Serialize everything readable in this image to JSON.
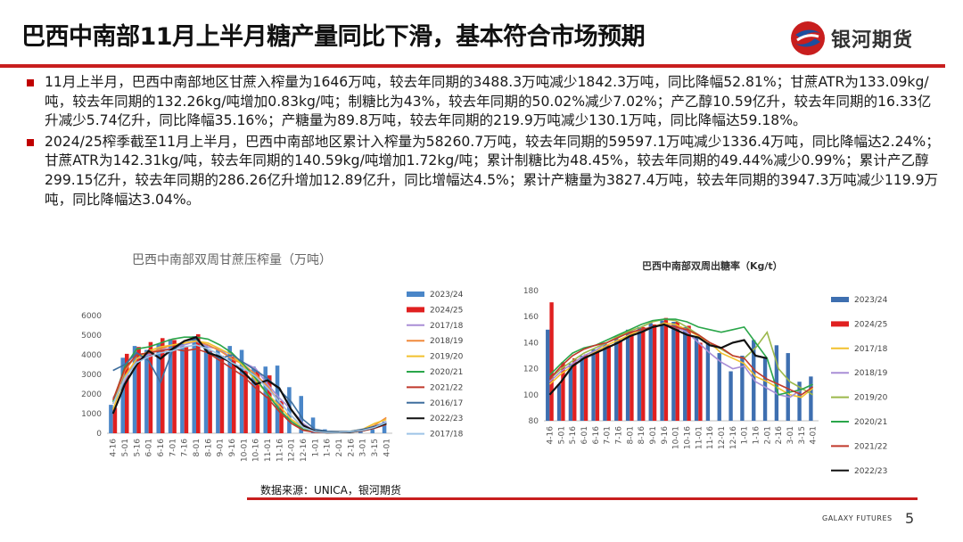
{
  "slide": {
    "title": "巴西中南部11月上半月糖产量同比下滑，基本符合市场预期",
    "logo_text": "银河期货",
    "footer_brand": "GALAXY FUTURES",
    "page_number": "5",
    "source": "数据来源：UNICA，银河期货",
    "bullets": [
      "11月上半月，巴西中南部地区甘蔗入榨量为1646万吨，较去年同期的3488.3万吨减少1842.3万吨，同比降幅52.81%；甘蔗ATR为133.09kg/吨，较去年同期的132.26kg/吨增加0.83kg/吨；制糖比为43%，较去年同期的50.02%减少7.02%；产乙醇10.59亿升，较去年同期的16.33亿升减少5.74亿升，同比降幅35.16%；产糖量为89.8万吨，较去年同期的219.9万吨减少130.1万吨，同比降幅达59.18%。",
      "2024/25榨季截至11月上半月，巴西中南部地区累计入榨量为58260.7万吨，较去年同期的59597.1万吨减少1336.4万吨，同比降幅达2.24%；甘蔗ATR为142.31kg/吨，较去年同期的140.59kg/吨增加1.72kg/吨；累计制糖比为48.45%，较去年同期的49.44%减少0.99%；累计产乙醇299.15亿升，较去年同期的286.26亿升增加12.89亿升，同比增幅达4.5%；累计产糖量为3827.4万吨，较去年同期的3947.3万吨减少119.9万吨，同比降幅达3.04%。"
    ],
    "colors": {
      "accent": "#c81e1e",
      "bullet": "#c00000"
    }
  },
  "chart_data": [
    {
      "type": "bar",
      "title": "巴西中南部双周甘蔗压榨量（万吨）",
      "xlabel": "",
      "ylabel": "",
      "ylim": [
        0,
        6000
      ],
      "yticks": [
        0,
        1000,
        2000,
        3000,
        4000,
        5000,
        6000
      ],
      "categories": [
        "4-16",
        "5-01",
        "5-16",
        "6-01",
        "6-16",
        "7-01",
        "7-16",
        "8-01",
        "8-16",
        "9-01",
        "9-16",
        "10-01",
        "10-16",
        "11-01",
        "11-16",
        "12-01",
        "12-16",
        "1-01",
        "1-16",
        "2-01",
        "2-16",
        "3-01",
        "3-15",
        "4-01"
      ],
      "legend_position": "right",
      "series": [
        {
          "name": "2023/24",
          "kind": "bar",
          "color": "#4a86c8",
          "values": [
            1450,
            3850,
            4450,
            4250,
            4550,
            4800,
            4600,
            4950,
            4550,
            4250,
            4450,
            4250,
            3400,
            3400,
            3450,
            2350,
            1900,
            800,
            200,
            100,
            100,
            150,
            200,
            600
          ]
        },
        {
          "name": "2024/25",
          "kind": "bar",
          "color": "#e02020",
          "values": [
            1300,
            4050,
            4400,
            4650,
            4850,
            4750,
            4400,
            5050,
            4200,
            3950,
            3900,
            3200,
            3150,
            2950,
            1650,
            null,
            null,
            null,
            null,
            null,
            null,
            null,
            null,
            null
          ]
        },
        {
          "name": "2017/18",
          "kind": "line",
          "color": "#a98ed6",
          "values": [
            1800,
            2700,
            3800,
            4000,
            4300,
            4300,
            4500,
            4700,
            4400,
            4300,
            3800,
            3600,
            3300,
            2500,
            1800,
            1200,
            500,
            100,
            50,
            50,
            80,
            150,
            300,
            600
          ]
        },
        {
          "name": "2018/19",
          "kind": "line",
          "color": "#f08a3c",
          "values": [
            1500,
            3200,
            4000,
            4100,
            4300,
            4500,
            4600,
            4700,
            4500,
            4200,
            3800,
            3500,
            3000,
            2400,
            1600,
            900,
            300,
            50,
            30,
            40,
            60,
            150,
            400,
            800
          ]
        },
        {
          "name": "2019/20",
          "kind": "line",
          "color": "#f2c12e",
          "values": [
            1200,
            2900,
            3800,
            4200,
            4400,
            4500,
            4600,
            4700,
            4600,
            4300,
            4000,
            3400,
            2700,
            2000,
            1400,
            700,
            300,
            80,
            50,
            60,
            100,
            200,
            500,
            700
          ]
        },
        {
          "name": "2020/21",
          "kind": "line",
          "color": "#2aa64a",
          "values": [
            1600,
            3400,
            4300,
            4400,
            4600,
            4800,
            4900,
            4900,
            4800,
            4500,
            4100,
            3500,
            2800,
            2000,
            1200,
            600,
            200,
            60,
            40,
            50,
            80,
            150,
            300,
            500
          ]
        },
        {
          "name": "2021/22",
          "kind": "line",
          "color": "#c0392b",
          "values": [
            1700,
            3300,
            4000,
            4100,
            4200,
            4300,
            4200,
            4300,
            4100,
            3700,
            3300,
            2900,
            2300,
            1800,
            1100,
            500,
            150,
            50,
            30,
            40,
            60,
            120,
            250,
            450
          ]
        },
        {
          "name": "2016/17",
          "kind": "line",
          "color": "#3f6f9e",
          "values": [
            3200,
            3500,
            4100,
            3700,
            2600,
            4200,
            4700,
            4800,
            4200,
            3800,
            4000,
            3600,
            3200,
            2800,
            2200,
            1600,
            700,
            200,
            100,
            80,
            100,
            200,
            350,
            550
          ]
        },
        {
          "name": "2022/23",
          "kind": "line",
          "color": "#111111",
          "values": [
            1000,
            2500,
            3500,
            4200,
            3800,
            4300,
            4700,
            4900,
            4100,
            3900,
            3600,
            3100,
            2500,
            2700,
            2300,
            1200,
            400,
            100,
            40,
            50,
            70,
            150,
            300,
            500
          ]
        },
        {
          "name": "2017/18",
          "kind": "line",
          "color": "#9ec4e6",
          "values": [
            1500,
            2800,
            3600,
            3900,
            4100,
            4200,
            4400,
            4500,
            4300,
            4000,
            3600,
            3300,
            2900,
            2300,
            1600,
            900,
            300,
            80,
            40,
            50,
            80,
            150,
            300,
            550
          ]
        }
      ]
    },
    {
      "type": "bar",
      "title": "巴西中南部双周出糖率（Kg/t）",
      "xlabel": "",
      "ylabel": "",
      "ylim": [
        80,
        180
      ],
      "yticks": [
        80,
        100,
        120,
        140,
        160,
        180
      ],
      "categories": [
        "4-16",
        "5-01",
        "5-16",
        "6-01",
        "6-16",
        "7-01",
        "7-16",
        "8-01",
        "8-16",
        "9-01",
        "9-16",
        "10-01",
        "10-16",
        "11-01",
        "11-16",
        "12-01",
        "12-16",
        "1-01",
        "1-16",
        "2-01",
        "2-16",
        "3-01",
        "3-15",
        "4-01"
      ],
      "legend_position": "right",
      "series": [
        {
          "name": "2023/24",
          "kind": "bar",
          "color": "#3e6fb0",
          "values": [
            150,
            108,
            124,
            130,
            135,
            140,
            145,
            150,
            152,
            155,
            157,
            156,
            152,
            145,
            140,
            132,
            118,
            130,
            142,
            128,
            138,
            132,
            110,
            114
          ]
        },
        {
          "name": "2024/25",
          "kind": "bar",
          "color": "#e02020",
          "values": [
            171,
            125,
            128,
            131,
            134,
            138,
            142,
            148,
            152,
            154,
            159,
            156,
            153,
            140,
            null,
            null,
            null,
            null,
            null,
            null,
            null,
            null,
            null,
            null
          ]
        },
        {
          "name": "2017/18",
          "kind": "line",
          "color": "#f2c12e",
          "values": [
            108,
            116,
            122,
            128,
            133,
            138,
            142,
            146,
            150,
            152,
            155,
            154,
            150,
            145,
            140,
            132,
            128,
            124,
            114,
            110,
            105,
            100,
            98,
            105
          ]
        },
        {
          "name": "2018/19",
          "kind": "line",
          "color": "#a98ed6",
          "values": [
            110,
            118,
            124,
            130,
            134,
            140,
            144,
            148,
            150,
            152,
            154,
            152,
            148,
            140,
            132,
            125,
            120,
            122,
            110,
            105,
            100,
            98,
            104,
            108
          ]
        },
        {
          "name": "2019/20",
          "kind": "line",
          "color": "#9bb84a",
          "values": [
            112,
            120,
            126,
            132,
            136,
            140,
            145,
            149,
            152,
            156,
            158,
            157,
            152,
            146,
            140,
            135,
            130,
            128,
            136,
            148,
            120,
            110,
            105,
            100
          ]
        },
        {
          "name": "2020/21",
          "kind": "line",
          "color": "#2aa64a",
          "values": [
            115,
            124,
            132,
            136,
            138,
            142,
            146,
            150,
            154,
            157,
            158,
            158,
            156,
            152,
            150,
            148,
            150,
            152,
            140,
            128,
            100,
            102,
            104,
            108
          ]
        },
        {
          "name": "2021/22",
          "kind": "line",
          "color": "#c0392b",
          "values": [
            112,
            122,
            130,
            135,
            138,
            140,
            144,
            148,
            150,
            152,
            154,
            152,
            150,
            146,
            140,
            136,
            130,
            128,
            118,
            112,
            108,
            104,
            100,
            106
          ]
        },
        {
          "name": "2022/23",
          "kind": "line",
          "color": "#111111",
          "values": [
            100,
            110,
            122,
            128,
            132,
            136,
            140,
            145,
            148,
            152,
            154,
            150,
            146,
            144,
            138,
            136,
            140,
            142,
            130,
            128,
            null,
            null,
            null,
            null
          ]
        }
      ]
    }
  ]
}
